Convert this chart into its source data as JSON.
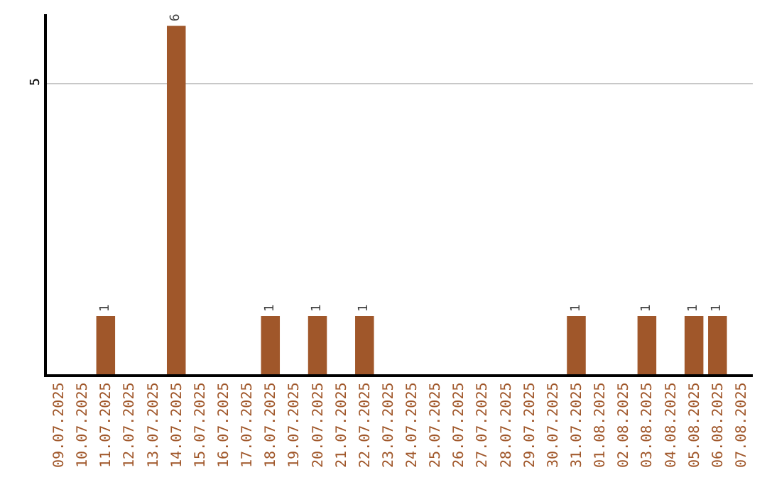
{
  "chart_data": {
    "type": "bar",
    "categories": [
      "09.07.2025",
      "10.07.2025",
      "11.07.2025",
      "12.07.2025",
      "13.07.2025",
      "14.07.2025",
      "15.07.2025",
      "16.07.2025",
      "17.07.2025",
      "18.07.2025",
      "19.07.2025",
      "20.07.2025",
      "21.07.2025",
      "22.07.2025",
      "23.07.2025",
      "24.07.2025",
      "25.07.2025",
      "26.07.2025",
      "27.07.2025",
      "28.07.2025",
      "29.07.2025",
      "30.07.2025",
      "31.07.2025",
      "01.08.2025",
      "02.08.2025",
      "03.08.2025",
      "04.08.2025",
      "05.08.2025",
      "06.08.2025",
      "07.08.2025"
    ],
    "values": [
      0,
      0,
      1,
      0,
      0,
      6,
      0,
      0,
      0,
      1,
      0,
      1,
      0,
      1,
      0,
      0,
      0,
      0,
      0,
      0,
      0,
      0,
      1,
      0,
      0,
      1,
      0,
      1,
      1,
      0
    ],
    "value_labels": [
      null,
      null,
      "1",
      null,
      null,
      "6",
      null,
      null,
      null,
      "1",
      null,
      "1",
      null,
      "1",
      null,
      null,
      null,
      null,
      null,
      null,
      null,
      null,
      "1",
      null,
      null,
      "1",
      null,
      "1",
      "1",
      null
    ],
    "color": "#a0572a",
    "ylim": [
      0,
      6.2
    ],
    "yticks": [
      5
    ],
    "grid": "y",
    "legend": false
  }
}
